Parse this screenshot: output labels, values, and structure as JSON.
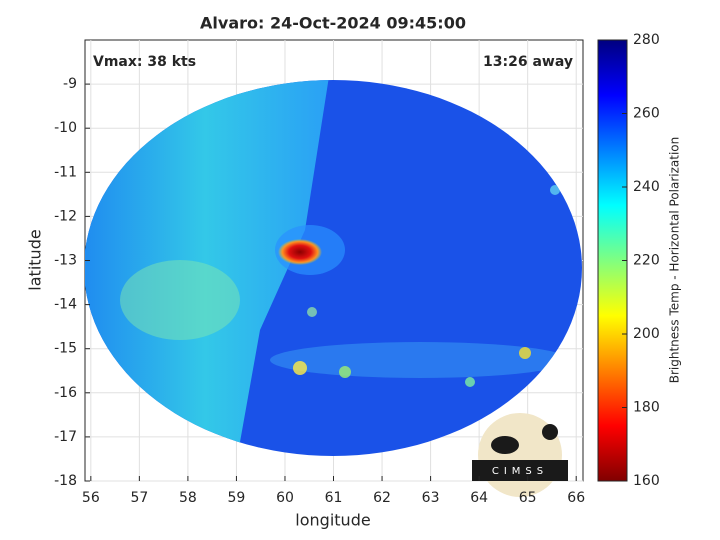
{
  "chart_data": {
    "type": "image",
    "title": "Alvaro: 24-Oct-2024 09:45:00",
    "xlabel": "longitude",
    "ylabel": "latitude",
    "xlim": [
      55.88,
      66.14
    ],
    "xticks": [
      56,
      57,
      58,
      59,
      60,
      61,
      62,
      63,
      64,
      65,
      66
    ],
    "ylim": [
      -18,
      -8
    ],
    "yticks": [
      -18,
      -17,
      -16,
      -15,
      -14,
      -13,
      -12,
      -11,
      -10,
      -9
    ],
    "grid": true,
    "annotations": [
      "Vmax: 38 kts",
      "13:26 away"
    ],
    "colorbar": {
      "label": "Brightness Temp - Horizontal Polarization",
      "lim": [
        160,
        280
      ],
      "ticks": [
        160,
        180,
        200,
        220,
        240,
        260,
        280
      ],
      "colormap": "jet"
    },
    "logo_text": "CIMSS"
  }
}
